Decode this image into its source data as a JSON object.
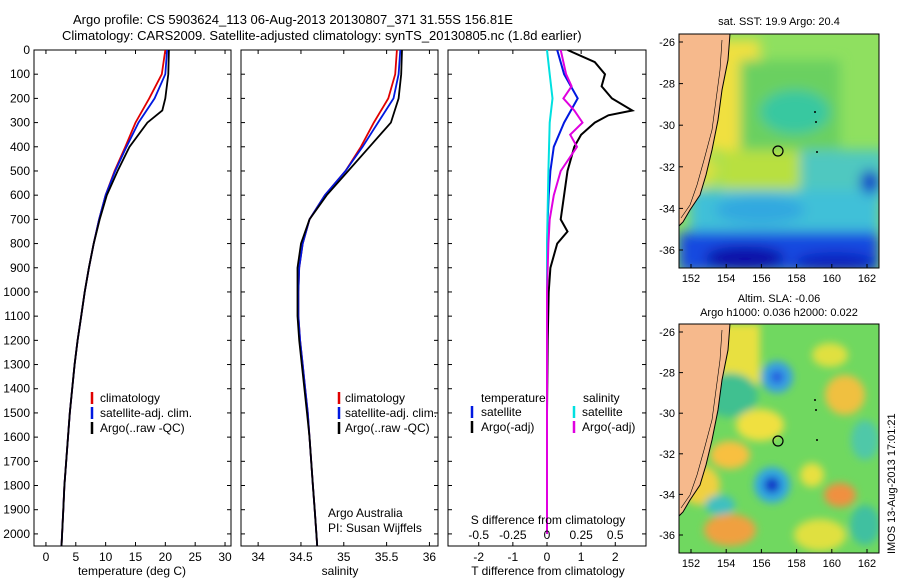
{
  "header": {
    "line1": "Argo profile: CS 5903624_113 06-Aug-2013 20130807_371 31.55S 156.81E",
    "line2": "Climatology: CARS2009. Satellite-adjusted climatology: synTS_20130805.nc (1.8d earlier)"
  },
  "colors": {
    "climatology": "#e00000",
    "satellite": "#0018e0",
    "argo": "#000000",
    "sat_salinity": "#00e0e0",
    "argo_salinity": "#e000e0",
    "land": "#f6b98c"
  },
  "chart_data": [
    {
      "type": "line",
      "panel": "temperature",
      "xlabel": "temperature (deg C)",
      "ylabel": "",
      "xlim": [
        -2,
        31
      ],
      "ylim": [
        2050,
        0
      ],
      "xticks": [
        0,
        5,
        10,
        15,
        20,
        25,
        30
      ],
      "yticks": [
        0,
        100,
        200,
        300,
        400,
        500,
        600,
        700,
        800,
        900,
        1000,
        1100,
        1200,
        1300,
        1400,
        1500,
        1600,
        1700,
        1800,
        1900,
        2000
      ],
      "legend": [
        "climatology",
        "satellite-adj. clim.",
        "Argo(..raw -QC)"
      ],
      "series": [
        {
          "name": "climatology",
          "depth": [
            0,
            100,
            200,
            300,
            400,
            500,
            600,
            700,
            800,
            900,
            1000,
            1100,
            1200,
            1300,
            1400,
            1500,
            1600,
            1700,
            1800,
            1900,
            2000,
            2050
          ],
          "values": [
            20.0,
            19.4,
            17.3,
            15.0,
            13.3,
            11.5,
            10.0,
            8.9,
            8.0,
            7.2,
            6.5,
            5.9,
            5.3,
            4.8,
            4.4,
            4.0,
            3.7,
            3.4,
            3.1,
            2.9,
            2.7,
            2.6
          ]
        },
        {
          "name": "satellite-adj. clim.",
          "depth": [
            0,
            100,
            200,
            300,
            400,
            500,
            600,
            700,
            800,
            900,
            1000,
            1100,
            1200,
            1300,
            1400,
            1500,
            1600,
            1700,
            1800,
            1900,
            2000,
            2050
          ],
          "values": [
            20.3,
            20.0,
            18.2,
            15.5,
            13.5,
            11.6,
            10.0,
            8.9,
            8.0,
            7.2,
            6.5,
            5.9,
            5.3,
            4.8,
            4.4,
            4.0,
            3.7,
            3.4,
            3.1,
            2.9,
            2.7,
            2.6
          ]
        },
        {
          "name": "Argo(..raw -QC)",
          "depth": [
            0,
            100,
            200,
            250,
            300,
            400,
            500,
            600,
            700,
            800,
            900,
            1000,
            1100,
            1200,
            1300,
            1400,
            1500,
            1600,
            1700,
            1800,
            1900,
            2000,
            2050
          ],
          "values": [
            20.6,
            20.5,
            20.0,
            19.5,
            17.0,
            14.0,
            12.0,
            10.2,
            9.0,
            8.0,
            7.2,
            6.5,
            5.9,
            5.3,
            4.8,
            4.4,
            4.0,
            3.7,
            3.4,
            3.1,
            2.9,
            2.7,
            2.6
          ]
        }
      ]
    },
    {
      "type": "line",
      "panel": "salinity",
      "xlabel": "salinity",
      "ylabel": "",
      "xlim": [
        33.8,
        36.1
      ],
      "ylim": [
        2050,
        0
      ],
      "xticks": [
        34,
        34.5,
        35,
        35.5,
        36
      ],
      "legend": [
        "climatology",
        "satellite-adj. clim.",
        "Argo(..raw -QC)"
      ],
      "annotation": [
        "Argo Australia",
        "PI: Susan Wijffels"
      ],
      "series": [
        {
          "name": "climatology",
          "depth": [
            0,
            100,
            200,
            300,
            400,
            500,
            600,
            700,
            800,
            900,
            1000,
            1100,
            1200,
            1300,
            1400,
            1500,
            1600,
            1700,
            1800,
            1900,
            2000,
            2050
          ],
          "values": [
            35.62,
            35.6,
            35.52,
            35.35,
            35.2,
            35.02,
            34.78,
            34.6,
            34.52,
            34.48,
            34.47,
            34.47,
            34.49,
            34.52,
            34.55,
            34.58,
            34.6,
            34.62,
            34.64,
            34.66,
            34.68,
            34.69
          ]
        },
        {
          "name": "satellite-adj. clim.",
          "depth": [
            0,
            100,
            200,
            300,
            400,
            500,
            600,
            700,
            800,
            900,
            1000,
            1100,
            1200,
            1300,
            1400,
            1500,
            1600,
            1700,
            1800,
            1900,
            2000,
            2050
          ],
          "values": [
            35.66,
            35.64,
            35.58,
            35.4,
            35.22,
            35.02,
            34.78,
            34.6,
            34.52,
            34.48,
            34.47,
            34.47,
            34.49,
            34.52,
            34.55,
            34.58,
            34.6,
            34.62,
            34.64,
            34.66,
            34.68,
            34.69
          ]
        },
        {
          "name": "Argo(..raw -QC)",
          "depth": [
            0,
            100,
            200,
            300,
            400,
            500,
            600,
            700,
            800,
            900,
            1000,
            1100,
            1200,
            1300,
            1400,
            1500,
            1600,
            1700,
            1800,
            1900,
            2000,
            2050
          ],
          "values": [
            35.68,
            35.67,
            35.64,
            35.55,
            35.3,
            35.05,
            34.8,
            34.6,
            34.5,
            34.46,
            34.46,
            34.46,
            34.48,
            34.51,
            34.54,
            34.57,
            34.6,
            34.62,
            34.64,
            34.66,
            34.68,
            34.69
          ]
        }
      ]
    },
    {
      "type": "line",
      "panel": "difference",
      "xlabel": "T difference from climatology",
      "xlabel_top": "S difference from climatology",
      "xlim": [
        -2.9,
        2.9
      ],
      "ylim": [
        2050,
        0
      ],
      "xticks": [
        -2,
        -1,
        0,
        1,
        2
      ],
      "xticks_s": [
        -0.5,
        -0.25,
        0,
        0.25,
        0.5
      ],
      "xticks_s_labels": [
        "-0.5",
        "-0.25",
        "0",
        "0.25",
        "0.5"
      ],
      "legend_temperature_title": "temperature",
      "legend_salinity_title": "salinity",
      "legend_temperature": [
        "satellite",
        "Argo(-adj)"
      ],
      "legend_salinity": [
        "satellite",
        "Argo(-adj)"
      ],
      "series": [
        {
          "name": "satellite",
          "depth": [
            0,
            100,
            200,
            300,
            400,
            500,
            600,
            700,
            800,
            1000,
            1200,
            1500,
            2000
          ],
          "values": [
            0.3,
            0.5,
            0.9,
            0.5,
            0.2,
            0.1,
            0.05,
            0.02,
            0.01,
            0,
            0,
            0,
            0
          ]
        },
        {
          "name": "Argo(-adj)",
          "depth": [
            0,
            50,
            100,
            150,
            200,
            250,
            270,
            300,
            350,
            400,
            500,
            600,
            700,
            750,
            800,
            900,
            1000,
            1200,
            1500,
            2000
          ],
          "values": [
            0.6,
            1.4,
            1.7,
            1.6,
            1.9,
            2.5,
            1.8,
            1.4,
            1.0,
            0.8,
            0.6,
            0.5,
            0.4,
            0.6,
            0.3,
            0.1,
            0.05,
            0.02,
            0,
            0
          ]
        },
        {
          "name": "satellite",
          "depth": [
            0,
            100,
            200,
            300,
            500,
            800,
            1000,
            1500,
            2000
          ],
          "values": [
            0,
            0.02,
            0.04,
            0.02,
            0.01,
            0,
            0,
            0,
            0
          ]
        },
        {
          "name": "Argo(-adj)",
          "depth": [
            0,
            100,
            150,
            200,
            250,
            300,
            350,
            400,
            500,
            600,
            700,
            800,
            1000,
            1500,
            2000
          ],
          "values": [
            0.1,
            0.14,
            0.18,
            0.12,
            0.2,
            0.26,
            0.17,
            0.22,
            0.1,
            0.05,
            0.02,
            0.01,
            0,
            0,
            0
          ]
        }
      ]
    }
  ],
  "maps": [
    {
      "name": "sst",
      "title": "sat. SST: 19.9 Argo: 20.4",
      "xticks": [
        "152",
        "154",
        "156",
        "158",
        "160",
        "162"
      ],
      "yticks": [
        "-26",
        "-28",
        "-30",
        "-32",
        "-34",
        "-36"
      ],
      "colormap": "jet"
    },
    {
      "name": "sla",
      "title": "Altim. SLA: -0.06",
      "subtitle": "Argo h1000: 0.036 h2000: 0.022",
      "xticks": [
        "152",
        "154",
        "156",
        "158",
        "160",
        "162"
      ],
      "yticks": [
        "-26",
        "-28",
        "-30",
        "-32",
        "-34",
        "-36"
      ],
      "colormap": "jet"
    }
  ],
  "side_label": "IMOS 13-Aug-2013 17:01:21"
}
